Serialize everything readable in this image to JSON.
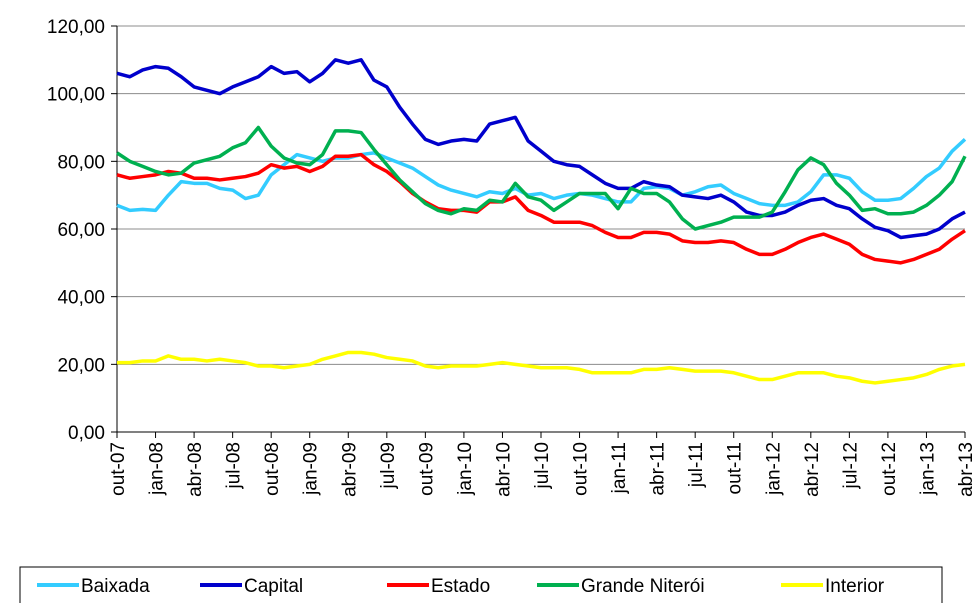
{
  "chart_data": {
    "type": "line",
    "categories": [
      "out-07",
      null,
      null,
      "jan-08",
      null,
      null,
      "abr-08",
      null,
      null,
      "jul-08",
      null,
      null,
      "out-08",
      null,
      null,
      "jan-09",
      null,
      null,
      "abr-09",
      null,
      null,
      "jul-09",
      null,
      null,
      "out-09",
      null,
      null,
      "jan-10",
      null,
      null,
      "abr-10",
      null,
      null,
      "jul-10",
      null,
      null,
      "out-10",
      null,
      null,
      "jan-11",
      null,
      null,
      "abr-11",
      null,
      null,
      "jul-11",
      null,
      null,
      "out-11",
      null,
      null,
      "jan-12",
      null,
      null,
      "abr-12",
      null,
      null,
      "jul-12",
      null,
      null,
      "out-12",
      null,
      null,
      "jan-13",
      null,
      null,
      "abr-13"
    ],
    "series": [
      {
        "name": "Baixada",
        "color": "#33ccff",
        "values": [
          67,
          65.5,
          65.8,
          65.5,
          70,
          74,
          73.5,
          73.5,
          72,
          71.5,
          69,
          70,
          76,
          79,
          82,
          81,
          80,
          81,
          81,
          82,
          82.5,
          81,
          79.5,
          78,
          75.5,
          73,
          71.5,
          70.5,
          69.5,
          71,
          70.5,
          72,
          70,
          70.5,
          69,
          70,
          70.5,
          70,
          69,
          68,
          68,
          72,
          72.5,
          72,
          70,
          71,
          72.5,
          73,
          70.5,
          69,
          67.5,
          67,
          67,
          68,
          71,
          76,
          76,
          75,
          71,
          68.5,
          68.5,
          69,
          72,
          75.5,
          78,
          83,
          86.5
        ]
      },
      {
        "name": "Capital",
        "color": "#0000cc",
        "values": [
          106,
          105,
          107,
          108,
          107.5,
          105,
          102,
          101,
          100,
          102,
          103.5,
          105,
          108,
          106,
          106.5,
          103.5,
          106,
          110,
          109,
          110,
          104,
          102,
          96,
          91,
          86.5,
          85,
          86,
          86.5,
          86,
          91,
          92,
          93,
          86,
          83,
          80,
          79,
          78.5,
          76,
          73.5,
          72,
          72,
          74,
          73,
          72.5,
          70,
          69.5,
          69,
          70,
          68,
          65,
          64,
          64,
          65,
          67,
          68.5,
          69,
          67,
          66,
          63,
          60.5,
          59.5,
          57.5,
          58,
          58.5,
          60,
          63,
          65
        ]
      },
      {
        "name": "Estado",
        "color": "#ff0000",
        "values": [
          76,
          75,
          75.5,
          76,
          77,
          76.5,
          75,
          75,
          74.5,
          75,
          75.5,
          76.5,
          79,
          78,
          78.5,
          77,
          78.5,
          81.5,
          81.5,
          82,
          79,
          77,
          74,
          70.5,
          68,
          66,
          65.5,
          65.5,
          65,
          68,
          68,
          69.5,
          65.5,
          64,
          62,
          62,
          62,
          61,
          59,
          57.5,
          57.5,
          59,
          59,
          58.5,
          56.5,
          56,
          56,
          56.5,
          56,
          54,
          52.5,
          52.5,
          54,
          56,
          57.5,
          58.5,
          57,
          55.5,
          52.5,
          51,
          50.5,
          50,
          51,
          52.5,
          54,
          57,
          59.5
        ]
      },
      {
        "name": "Grande Niterói",
        "color": "#00b050",
        "values": [
          82.5,
          80,
          78.5,
          77,
          76,
          76.5,
          79.5,
          80.5,
          81.5,
          84,
          85.5,
          90,
          84.5,
          81,
          79.5,
          79,
          82,
          89,
          89,
          88.5,
          83.5,
          79,
          74.5,
          71,
          67.5,
          65.5,
          64.5,
          66,
          65.5,
          68.5,
          68,
          73.5,
          69.5,
          68.5,
          65.5,
          68,
          70.5,
          70.5,
          70.5,
          66,
          72,
          70.5,
          70.5,
          68,
          63,
          60,
          61,
          62,
          63.5,
          63.5,
          63.5,
          65,
          71,
          77.5,
          81,
          79,
          73.5,
          70,
          65.5,
          66,
          64.5,
          64.5,
          65,
          67,
          70,
          74,
          81.5
        ]
      },
      {
        "name": "Interior",
        "color": "#ffff00",
        "values": [
          20.5,
          20.5,
          21,
          21,
          22.5,
          21.5,
          21.5,
          21,
          21.5,
          21,
          20.5,
          19.5,
          19.5,
          19,
          19.5,
          20,
          21.5,
          22.5,
          23.5,
          23.5,
          23,
          22,
          21.5,
          21,
          19.5,
          19,
          19.5,
          19.5,
          19.5,
          20,
          20.5,
          20,
          19.5,
          19,
          19,
          19,
          18.5,
          17.5,
          17.5,
          17.5,
          17.5,
          18.5,
          18.5,
          19,
          18.5,
          18,
          18,
          18,
          17.5,
          16.5,
          15.5,
          15.5,
          16.5,
          17.5,
          17.5,
          17.5,
          16.5,
          16,
          15,
          14.5,
          15,
          15.5,
          16,
          17,
          18.5,
          19.5,
          20
        ]
      }
    ],
    "ylim": [
      0,
      120
    ],
    "yticks": [
      {
        "value": 0,
        "label": "0,00"
      },
      {
        "value": 20,
        "label": "20,00"
      },
      {
        "value": 40,
        "label": "40,00"
      },
      {
        "value": 60,
        "label": "60,00"
      },
      {
        "value": 80,
        "label": "80,00"
      },
      {
        "value": 100,
        "label": "100,00"
      },
      {
        "value": 120,
        "label": "120,00"
      }
    ],
    "grid": true,
    "legend": "bottom"
  }
}
